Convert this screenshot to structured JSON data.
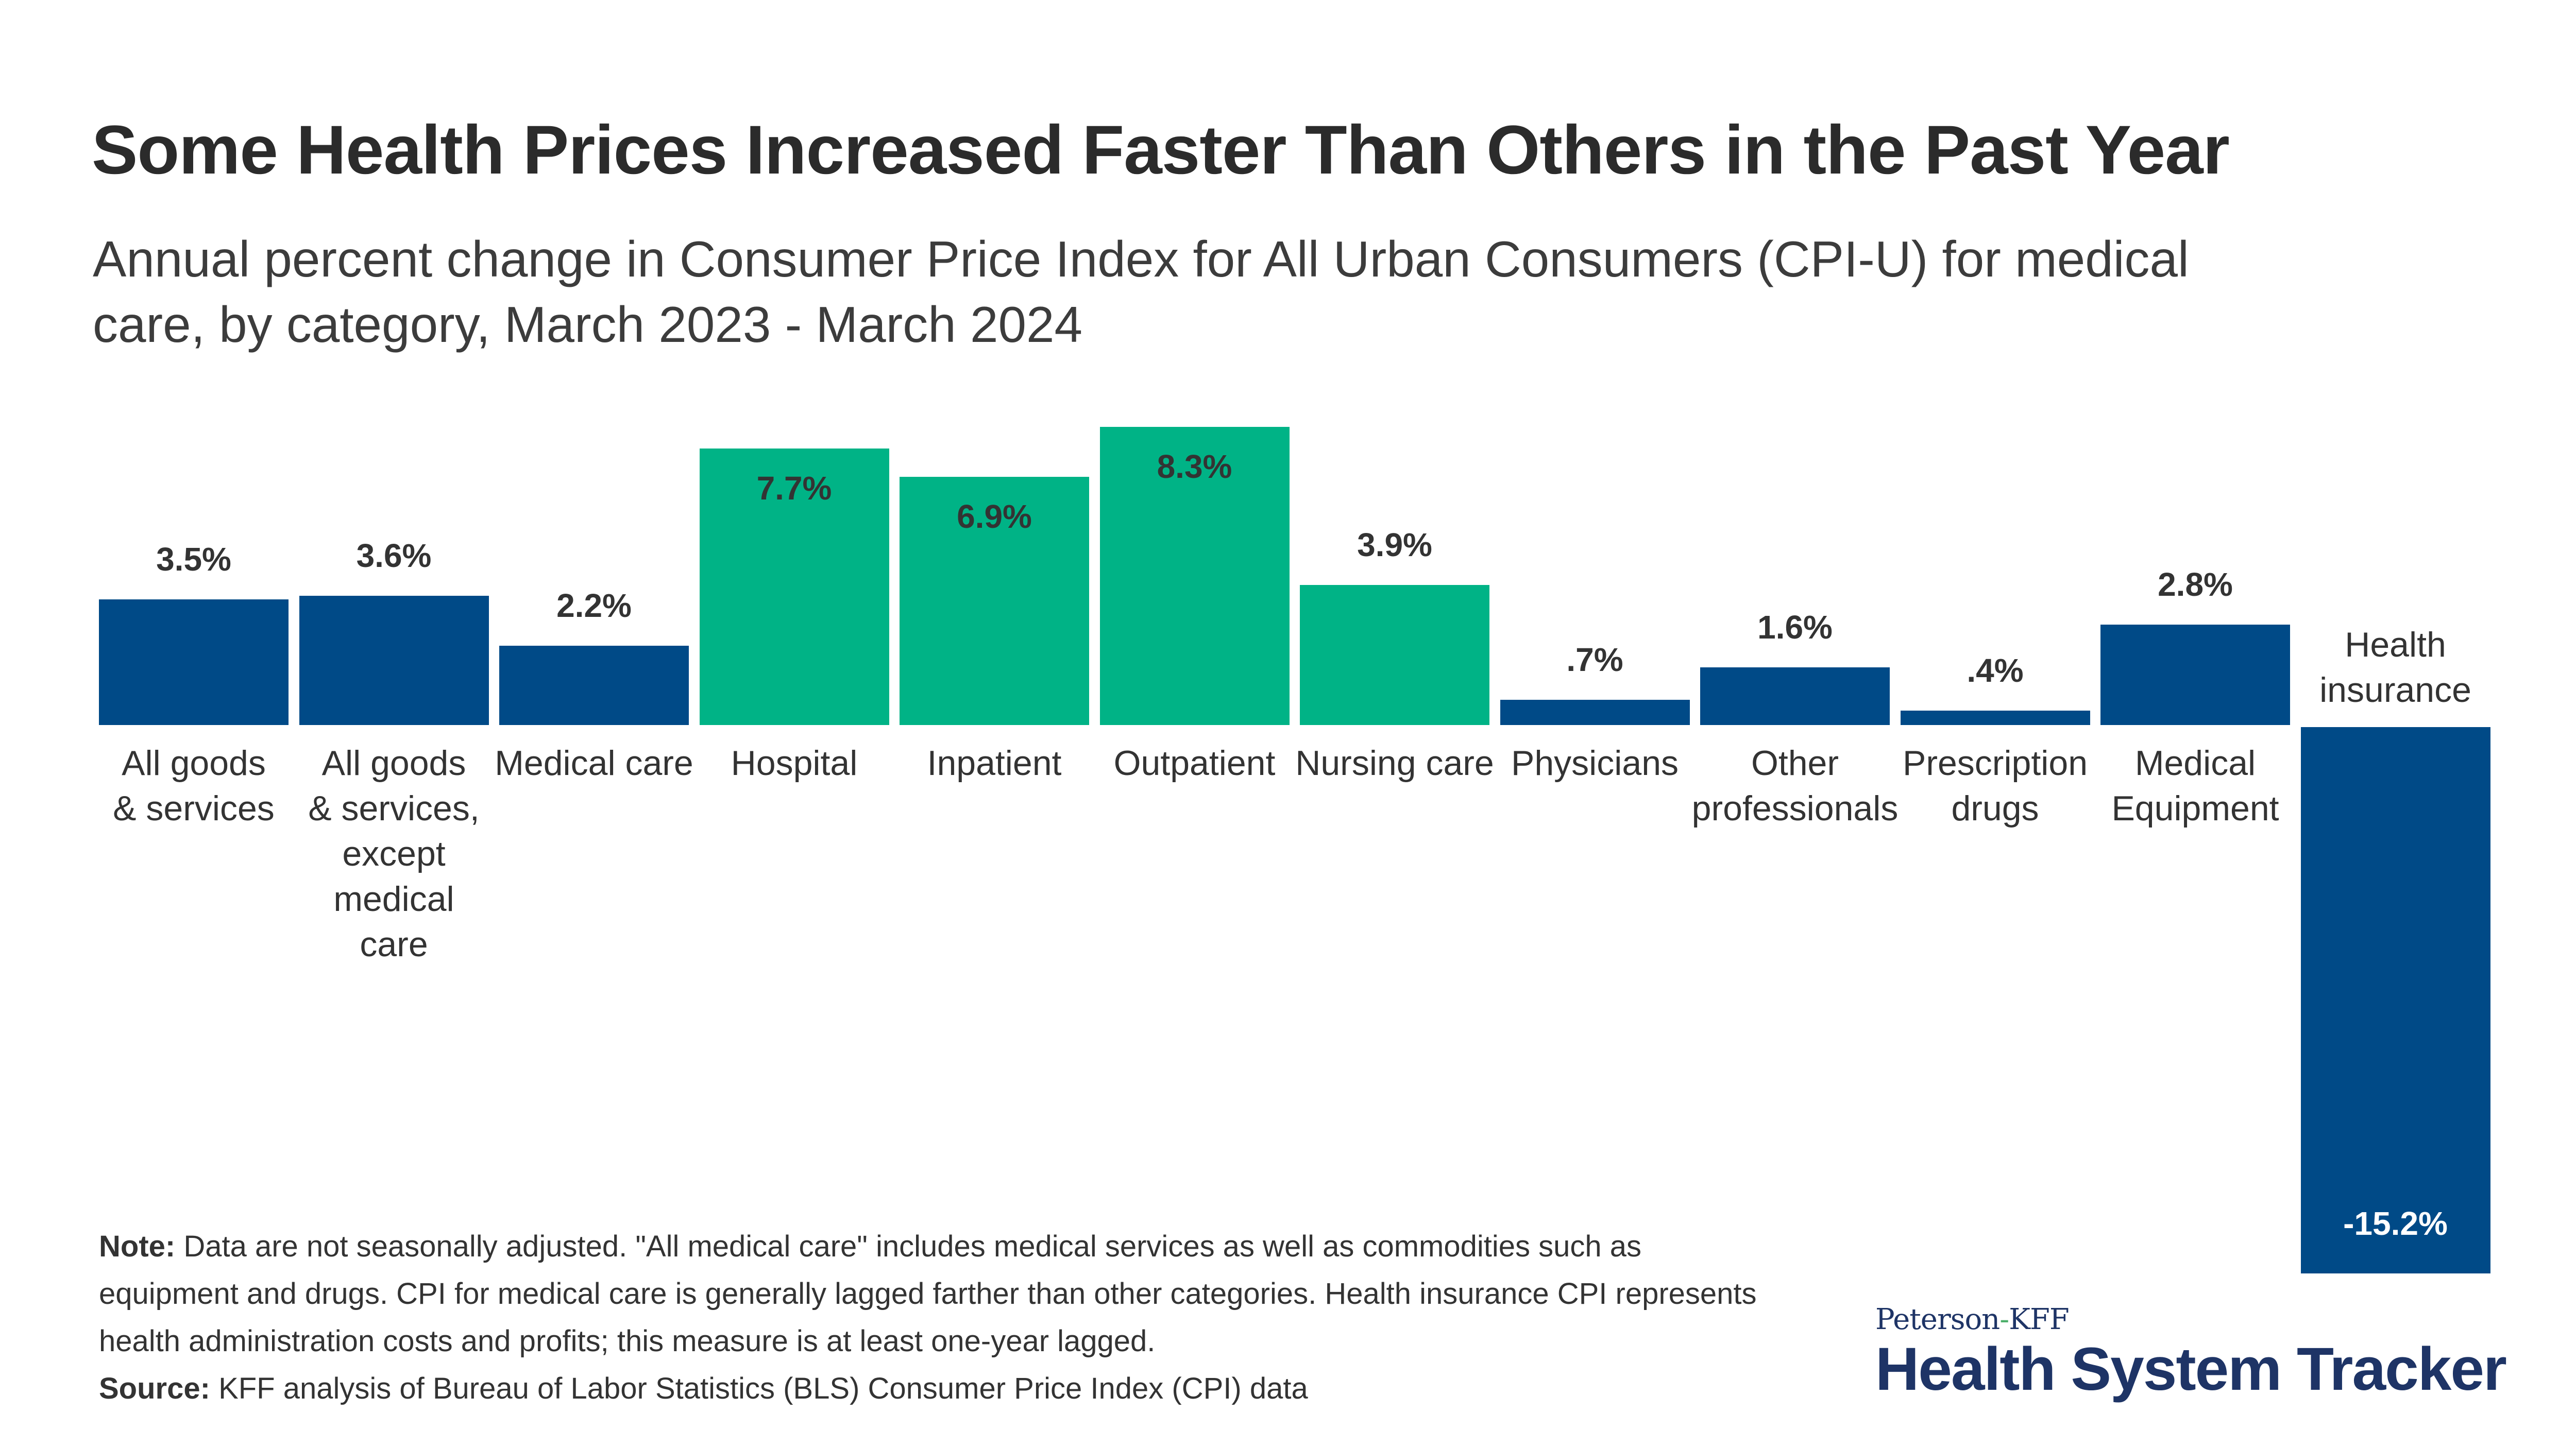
{
  "title": "Some Health Prices Increased Faster Than Others in the Past Year",
  "subtitle": "Annual percent change in Consumer Price Index for All Urban Consumers (CPI-U) for medical care, by category, March 2023 - March 2024",
  "chart_data": {
    "type": "bar",
    "categories": [
      "All goods & services",
      "All goods & services, except medical care",
      "Medical care",
      "Hospital",
      "Inpatient",
      "Outpatient",
      "Nursing care",
      "Physicians",
      "Other professionals",
      "Prescription drugs",
      "Medical Equipment",
      "Health insurance"
    ],
    "values": [
      3.5,
      3.6,
      2.2,
      7.7,
      6.9,
      8.3,
      3.9,
      0.7,
      1.6,
      0.4,
      2.8,
      -15.2
    ],
    "data_labels": [
      "3.5%",
      "3.6%",
      "2.2%",
      "7.7%",
      "6.9%",
      "8.3%",
      "3.9%",
      ".7%",
      "1.6%",
      ".4%",
      "2.8%",
      "-15.2%"
    ],
    "highlighted": [
      false,
      false,
      false,
      true,
      true,
      true,
      true,
      false,
      false,
      false,
      false,
      false
    ],
    "colors": {
      "default": "#004a87",
      "highlight": "#00b386"
    },
    "grid": false,
    "axes_visible": false
  },
  "note": {
    "note_label": "Note:",
    "note_text": " Data are not seasonally adjusted. \"All medical care\" includes medical services as well as commodities such as equipment and drugs. CPI for medical care is generally lagged farther than other categories. Health insurance CPI represents health administration costs and profits; this measure is at least one-year lagged.",
    "source_label": "Source:",
    "source_text": " KFF analysis of Bureau of Labor Statistics (BLS) Consumer Price Index (CPI) data"
  },
  "logo": {
    "top_left": "Peterson",
    "top_dash": "-",
    "top_right": "KFF",
    "main": "Health System Tracker"
  }
}
